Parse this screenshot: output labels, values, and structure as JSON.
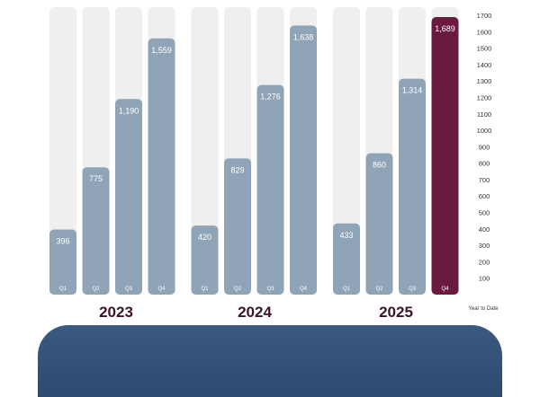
{
  "chart_data": {
    "type": "bar",
    "title": "",
    "xlabel": "",
    "ylabel": "",
    "ylim": [
      0,
      1700
    ],
    "y_ticks": [
      100,
      200,
      300,
      400,
      500,
      600,
      700,
      800,
      900,
      1000,
      1100,
      1200,
      1300,
      1400,
      1500,
      1600,
      1700
    ],
    "y_axis_side": "right",
    "y_axis_caption": "Year to Date",
    "grid": false,
    "groups": [
      {
        "year": "2023",
        "bars": [
          {
            "quarter": "Q1",
            "value": 396,
            "label": "396"
          },
          {
            "quarter": "Q2",
            "value": 775,
            "label": "775"
          },
          {
            "quarter": "Q3",
            "value": 1190,
            "label": "1,190"
          },
          {
            "quarter": "Q4",
            "value": 1559,
            "label": "1,559"
          }
        ]
      },
      {
        "year": "2024",
        "bars": [
          {
            "quarter": "Q1",
            "value": 420,
            "label": "420"
          },
          {
            "quarter": "Q2",
            "value": 829,
            "label": "829"
          },
          {
            "quarter": "Q3",
            "value": 1276,
            "label": "1,276"
          },
          {
            "quarter": "Q4",
            "value": 1638,
            "label": "1,638"
          }
        ]
      },
      {
        "year": "2025",
        "bars": [
          {
            "quarter": "Q1",
            "value": 433,
            "label": "433"
          },
          {
            "quarter": "Q2",
            "value": 860,
            "label": "860"
          },
          {
            "quarter": "Q3",
            "value": 1314,
            "label": "1,314"
          },
          {
            "quarter": "Q4",
            "value": 1689,
            "label": "1,689",
            "highlight": true
          }
        ]
      }
    ],
    "colors": {
      "bar": "#90a4b7",
      "highlight_bar": "#6b1a3f",
      "track": "#efefef",
      "bar_text": "#ffffff",
      "year_text": "#3b1428",
      "axis_text": "#333333"
    }
  },
  "footer": {
    "color": "#2f4e75"
  }
}
